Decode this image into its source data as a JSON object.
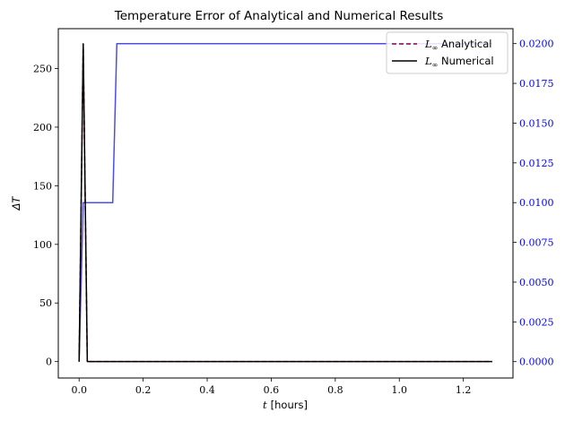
{
  "chart_data": {
    "type": "line",
    "title": "Temperature Error of Analytical and Numerical Results",
    "xlabel_var": "t",
    "xlabel_unit": "[hours]",
    "ylabel": "ΔT",
    "ylabel_right": "",
    "xlim": [
      -0.065,
      1.355
    ],
    "ylim": [
      -14,
      284
    ],
    "ylim_right": [
      -0.00103,
      0.02094
    ],
    "xticks": [
      "0.0",
      "0.2",
      "0.4",
      "0.6",
      "0.8",
      "1.0",
      "1.2"
    ],
    "yticks": [
      "0",
      "50",
      "100",
      "150",
      "200",
      "250"
    ],
    "yticks_right": [
      "0.0000",
      "0.0025",
      "0.0050",
      "0.0075",
      "0.0100",
      "0.0125",
      "0.0150",
      "0.0175",
      "0.0200"
    ],
    "grid": false,
    "legend_position": "top-right",
    "colors": {
      "analytical": "#8b0044",
      "numerical": "#000000",
      "right_series": "#4444e6",
      "right_axis": "#0000ff"
    },
    "series": [
      {
        "name_main": "L",
        "name_sub": "∞",
        "name_suffix": " Analytical",
        "axis": "left",
        "style": "dashed",
        "x": [
          0.0,
          0.0128,
          0.0256,
          1.29
        ],
        "y": [
          0,
          271,
          0,
          0
        ]
      },
      {
        "name_main": "L",
        "name_sub": "∞",
        "name_suffix": " Numerical",
        "axis": "left",
        "style": "solid",
        "x": [
          0.0,
          0.0128,
          0.0256,
          1.29
        ],
        "y": [
          0,
          271,
          0,
          0
        ]
      },
      {
        "name": "",
        "axis": "right",
        "style": "solid",
        "x": [
          0.0,
          0.0128,
          0.0256,
          0.105,
          0.1178,
          1.29
        ],
        "y": [
          0.0,
          0.01,
          0.01,
          0.01,
          0.02,
          0.02
        ]
      }
    ]
  }
}
